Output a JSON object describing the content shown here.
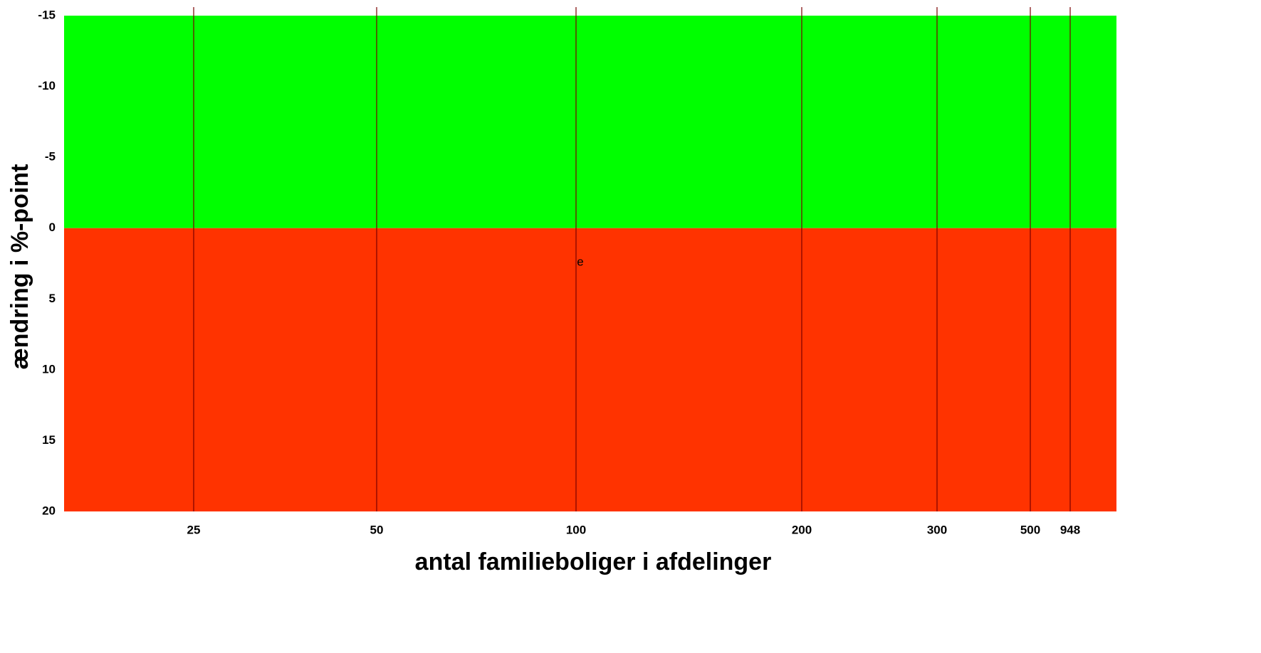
{
  "chart_data": {
    "type": "band",
    "x_label": "antal familieboliger i afdelinger",
    "y_label": "ændring i %-point",
    "xticks": [
      25,
      50,
      100,
      200,
      300,
      500,
      948
    ],
    "ylim": [
      -15,
      20
    ],
    "y_inverted": true,
    "yticks": [
      -15,
      -10,
      -5,
      0,
      5,
      10,
      15,
      20
    ],
    "bands": [
      {
        "from": -15,
        "to": 0,
        "color": "#00ff00"
      },
      {
        "from": 0,
        "to": 20,
        "color": "#ff3300"
      }
    ],
    "line_color": "#7a0000",
    "annotations": [
      "e"
    ]
  }
}
